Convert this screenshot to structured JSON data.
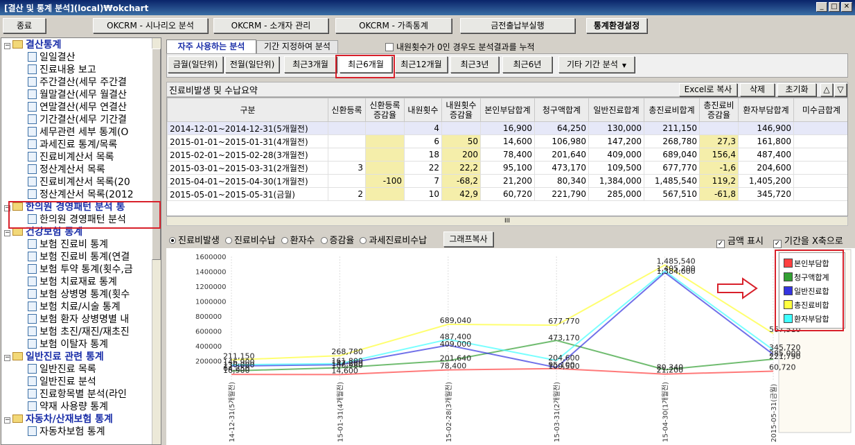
{
  "window": {
    "title": "[결산 및 통계 분석](local)₩okchart",
    "min": "_",
    "max": "□",
    "close": "✕"
  },
  "toolbar": {
    "exit": "종료",
    "b1": "OKCRM - 시나리오 분석",
    "b2": "OKCRM - 소개자 관리",
    "b3": "OKCRM - 가족통계",
    "b4": "금전출납부실행",
    "b5": "통계환경설정"
  },
  "tree": [
    {
      "t": "결산통계",
      "type": "cat",
      "exp": "−"
    },
    {
      "t": "일일결산",
      "type": "doc"
    },
    {
      "t": "진료내용 보고",
      "type": "doc"
    },
    {
      "t": "주간결산(세무 주간결",
      "type": "doc"
    },
    {
      "t": "월말결산(세무 월결산",
      "type": "doc"
    },
    {
      "t": "연말결산(세무 연결산",
      "type": "doc"
    },
    {
      "t": "기간결산(세무 기간결",
      "type": "doc"
    },
    {
      "t": "세무관련 세부 통계(O",
      "type": "doc"
    },
    {
      "t": "과세진료 통계/목록",
      "type": "doc"
    },
    {
      "t": "진료비계산서 목록",
      "type": "doc"
    },
    {
      "t": "정산계산서 목록",
      "type": "doc"
    },
    {
      "t": "진료비계산서 목록(20",
      "type": "doc"
    },
    {
      "t": "정산계산서 목록(2012",
      "type": "doc"
    },
    {
      "t": "한의원 경영패턴 분석 통",
      "type": "cat",
      "exp": "−"
    },
    {
      "t": "한의원 경영패턴 분석",
      "type": "doc"
    },
    {
      "t": "건강보험 통계",
      "type": "cat",
      "exp": "−"
    },
    {
      "t": "보험 진료비 통계",
      "type": "doc"
    },
    {
      "t": "보험 진료비 통계(연결",
      "type": "doc"
    },
    {
      "t": "보험 투약 통계(횟수,금",
      "type": "doc"
    },
    {
      "t": "보험 치료재료 통계",
      "type": "doc"
    },
    {
      "t": "보험 상병명 통계(횟수",
      "type": "doc"
    },
    {
      "t": "보험 치료/시술 통계",
      "type": "doc"
    },
    {
      "t": "보험 환자 상병명별 내",
      "type": "doc"
    },
    {
      "t": "보험 초진/재진/재초진",
      "type": "doc"
    },
    {
      "t": "보험 이탈자 통계",
      "type": "doc"
    },
    {
      "t": "일반진료 관련 통계",
      "type": "cat",
      "exp": "−"
    },
    {
      "t": "일반진료 목록",
      "type": "doc"
    },
    {
      "t": "일반진료 분석",
      "type": "doc"
    },
    {
      "t": "진료항목별 분석(라인",
      "type": "doc"
    },
    {
      "t": "약재 사용량 통계",
      "type": "doc"
    },
    {
      "t": "자동차/산재보험 통계",
      "type": "cat",
      "exp": "−"
    },
    {
      "t": "자동차보험 통계",
      "type": "doc"
    }
  ],
  "tabs": {
    "t1": "자주 사용하는 분석",
    "t2": "기간 지정하여 분석",
    "accumulate": "내원횟수가 0인 경우도 분석결과를 누적"
  },
  "periods": [
    "금월(일단위)",
    "전월(일단위)",
    "최근3개월",
    "최근6개월",
    "최근12개월",
    "최근3년",
    "최근6년",
    "기타 기간 분석"
  ],
  "grid": {
    "title": "진료비발생 및 수납요약",
    "excel": "Excel로 복사",
    "delete": "삭제",
    "reset": "초기화",
    "up": "△",
    "down": "▽",
    "headers": [
      "구분",
      "신환등록",
      "신환등록 증감율",
      "내원횟수",
      "내원횟수 증감율",
      "본인부담합계",
      "청구액합계",
      "일반진료합계",
      "총진료비합계",
      "총진료비 증감율",
      "환자부담합계",
      "미수금합계"
    ],
    "rows": [
      [
        "2014-12-01~2014-12-31(5개월전)",
        "",
        "",
        "4",
        "",
        "16,900",
        "64,250",
        "130,000",
        "211,150",
        "",
        "146,900",
        ""
      ],
      [
        "2015-01-01~2015-01-31(4개월전)",
        "",
        "",
        "6",
        "50",
        "14,600",
        "106,980",
        "147,200",
        "268,780",
        "27,3",
        "161,800",
        ""
      ],
      [
        "2015-02-01~2015-02-28(3개월전)",
        "",
        "",
        "18",
        "200",
        "78,400",
        "201,640",
        "409,000",
        "689,040",
        "156,4",
        "487,400",
        ""
      ],
      [
        "2015-03-01~2015-03-31(2개월전)",
        "3",
        "",
        "22",
        "22,2",
        "95,100",
        "473,170",
        "109,500",
        "677,770",
        "-1,6",
        "204,600",
        ""
      ],
      [
        "2015-04-01~2015-04-30(1개월전)",
        "",
        "-100",
        "7",
        "-68,2",
        "21,200",
        "80,340",
        "1,384,000",
        "1,485,540",
        "119,2",
        "1,405,200",
        ""
      ],
      [
        "2015-05-01~2015-05-31(금월)",
        "2",
        "",
        "10",
        "42,9",
        "60,720",
        "221,790",
        "285,000",
        "567,510",
        "-61,8",
        "345,720",
        ""
      ]
    ],
    "scroll": "III"
  },
  "chartopts": {
    "radios": [
      "진료비발생",
      "진료비수납",
      "환자수",
      "증감율",
      "과세진료비수납"
    ],
    "copy": "그래프복사",
    "chk1": "금액 표시",
    "chk2": "기간을 X축으로",
    "chkmark": "✓"
  },
  "chart_data": {
    "type": "line",
    "categories": [
      "2014-12-01~2014-12-31(5개월전)",
      "2015-01-01~2015-01-31(4개월전)",
      "2015-02-01~2015-02-28(3개월전)",
      "2015-03-01~2015-03-31(2개월전)",
      "2015-04-01~2015-04-30(1개월전)",
      "2015-05-01~2015-05-31(금월)"
    ],
    "xticks": [
      "14-12-31(5개월전)",
      "15-01-31(4개월전)",
      "15-02-28(3개월전)",
      "15-03-31(2개월전)",
      "15-04-30(1개월전)",
      "2015-05-31(금월)"
    ],
    "yticks": [
      "1600000",
      "1400000",
      "1200000",
      "1000000",
      "800000",
      "600000",
      "400000",
      "200000"
    ],
    "ylim": [
      0,
      1600000
    ],
    "series": [
      {
        "name": "본인부담합계",
        "color": "#ff4040",
        "values": [
          16900,
          14600,
          78400,
          95100,
          21200,
          60720
        ],
        "labels": [
          "16,900",
          "14,600",
          "78,400",
          "95,100",
          "21,200",
          "60,720"
        ]
      },
      {
        "name": "청구액합계",
        "color": "#33a033",
        "values": [
          64250,
          106980,
          201640,
          473170,
          80340,
          221790
        ],
        "labels": [
          "64,250",
          "106,980",
          "201,640",
          "473,170",
          "80,340",
          "221,790"
        ]
      },
      {
        "name": "일반진료합계",
        "color": "#3434e0",
        "values": [
          130000,
          147200,
          409000,
          109500,
          1384000,
          285000
        ],
        "labels": [
          "130,000",
          "147,200",
          "409,000",
          "109,500",
          "1,384,000",
          "285,000"
        ]
      },
      {
        "name": "총진료비합계",
        "color": "#ffff40",
        "values": [
          211150,
          268780,
          689040,
          677770,
          1485540,
          567510
        ],
        "labels": [
          "211,150",
          "268,780",
          "689,040",
          "677,770",
          "1,485,540",
          "567,510"
        ]
      },
      {
        "name": "환자부담합계",
        "color": "#40ffff",
        "values": [
          146900,
          161800,
          487400,
          204600,
          1405200,
          345720
        ],
        "labels": [
          "146,900",
          "161,800",
          "487,400",
          "204,600",
          "1,405,200",
          "345,720"
        ]
      }
    ],
    "legend": [
      "본인부담합",
      "청구액합계",
      "일반진료합",
      "총진료비합",
      "환자부담합"
    ],
    "legend_position": "right"
  }
}
